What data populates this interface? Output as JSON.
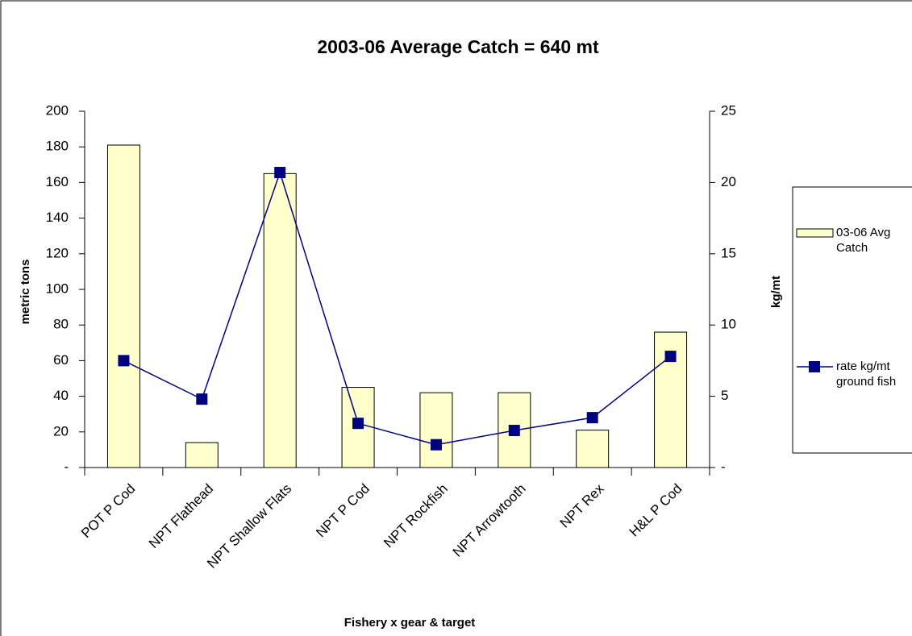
{
  "chart_data": {
    "type": "bar_line",
    "title": "2003-06 Average Catch = 640 mt",
    "x_label": "Fishery x gear & target",
    "y_label": "metric tons",
    "y2_label": "kg/mt",
    "categories": [
      "POT P Cod",
      "NPT Flathead",
      "NPT Shallow Flats",
      "NPT P Cod",
      "NPT Rockfish",
      "NPT Arrowtooth",
      "NPT Rex",
      "H&L P Cod"
    ],
    "series": [
      {
        "name": "03-06 Avg Catch",
        "type": "bar",
        "color": "#ffffcc",
        "values": [
          181,
          14,
          165,
          45,
          42,
          42,
          21,
          76
        ]
      },
      {
        "name": "rate kg/mt ground fish",
        "type": "line",
        "axis": "y2",
        "color": "#000080",
        "values": [
          7.5,
          4.8,
          20.7,
          3.1,
          1.6,
          2.6,
          3.5,
          7.8
        ]
      }
    ],
    "ylim": [
      0,
      200
    ],
    "yticks": [
      {
        "value": 0,
        "label": "-"
      },
      20,
      40,
      60,
      80,
      100,
      120,
      140,
      160,
      180,
      200
    ],
    "y2lim": [
      0,
      25
    ],
    "y2ticks": [
      {
        "value": 0,
        "label": "-"
      },
      5,
      10,
      15,
      20,
      25
    ],
    "legend": "right",
    "grid": false
  }
}
